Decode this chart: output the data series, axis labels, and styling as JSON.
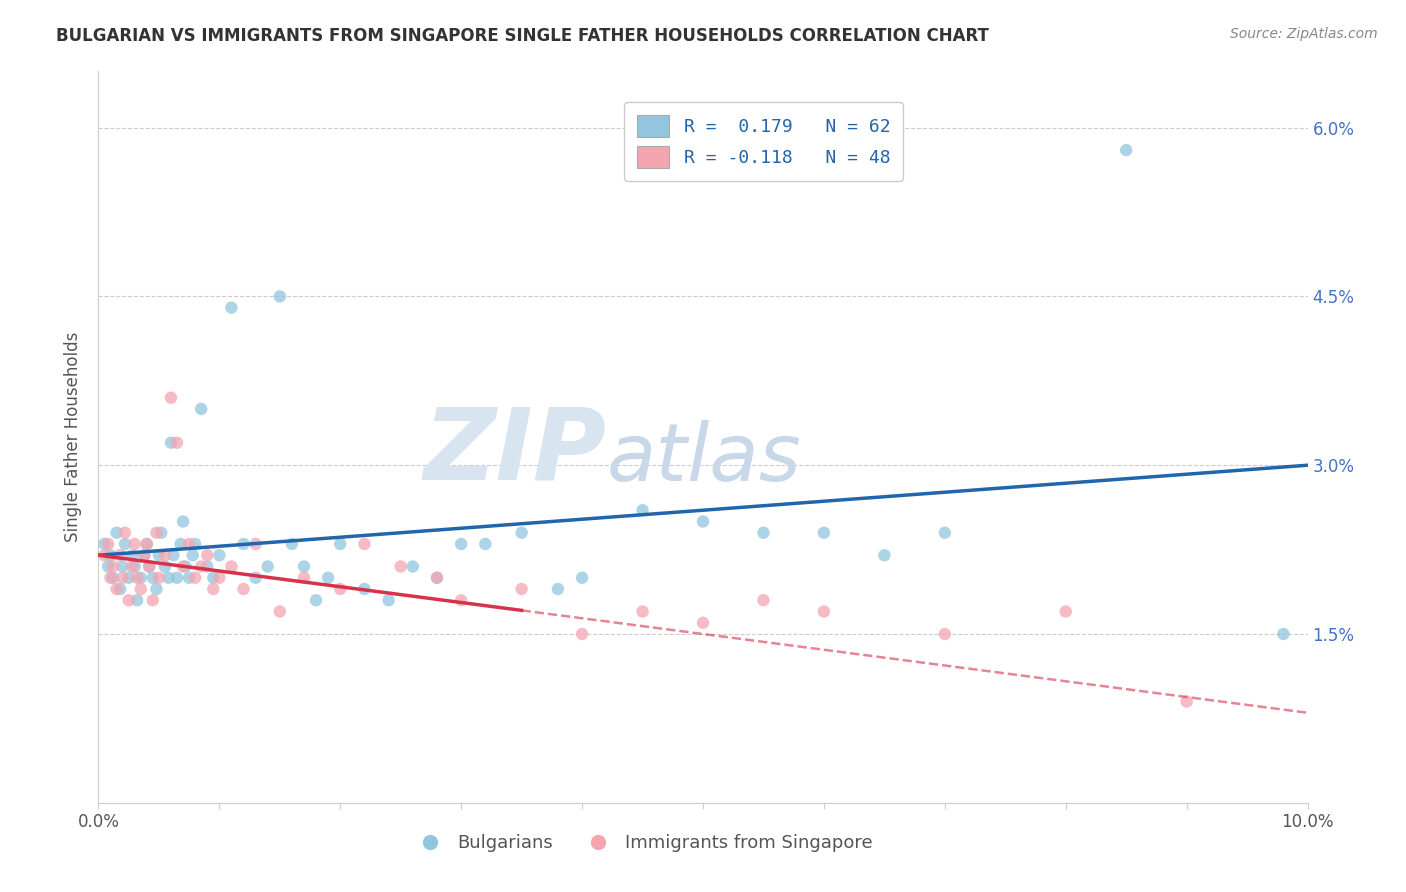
{
  "title": "BULGARIAN VS IMMIGRANTS FROM SINGAPORE SINGLE FATHER HOUSEHOLDS CORRELATION CHART",
  "source_text": "Source: ZipAtlas.com",
  "ylabel": "Single Father Households",
  "xmin": 0.0,
  "xmax": 10.0,
  "ymin": 0.0,
  "ymax": 6.5,
  "yticks": [
    1.5,
    3.0,
    4.5,
    6.0
  ],
  "ytick_labels": [
    "1.5%",
    "3.0%",
    "4.5%",
    "6.0%"
  ],
  "xtick_show": [
    0.0,
    10.0
  ],
  "legend_r1": "R =  0.179   N = 62",
  "legend_r2": "R = -0.118   N = 48",
  "blue_color": "#92c5de",
  "pink_color": "#f4a5b0",
  "blue_line_color": "#2166ac",
  "pink_line_color": "#d6324b",
  "watermark_zip": "ZIP",
  "watermark_atlas": "atlas",
  "blue_scatter_x": [
    0.05,
    0.08,
    0.1,
    0.12,
    0.15,
    0.18,
    0.2,
    0.22,
    0.25,
    0.28,
    0.3,
    0.32,
    0.35,
    0.38,
    0.4,
    0.42,
    0.45,
    0.48,
    0.5,
    0.52,
    0.55,
    0.58,
    0.6,
    0.62,
    0.65,
    0.68,
    0.7,
    0.72,
    0.75,
    0.78,
    0.8,
    0.85,
    0.9,
    0.95,
    1.0,
    1.1,
    1.2,
    1.3,
    1.4,
    1.5,
    1.6,
    1.7,
    1.8,
    1.9,
    2.0,
    2.2,
    2.4,
    2.6,
    2.8,
    3.0,
    3.2,
    3.5,
    3.8,
    4.0,
    4.5,
    5.0,
    5.5,
    6.0,
    6.5,
    7.0,
    8.5,
    9.8
  ],
  "blue_scatter_y": [
    2.3,
    2.1,
    2.2,
    2.0,
    2.4,
    1.9,
    2.1,
    2.3,
    2.0,
    2.2,
    2.1,
    1.8,
    2.0,
    2.2,
    2.3,
    2.1,
    2.0,
    1.9,
    2.2,
    2.4,
    2.1,
    2.0,
    3.2,
    2.2,
    2.0,
    2.3,
    2.5,
    2.1,
    2.0,
    2.2,
    2.3,
    3.5,
    2.1,
    2.0,
    2.2,
    4.4,
    2.3,
    2.0,
    2.1,
    4.5,
    2.3,
    2.1,
    1.8,
    2.0,
    2.3,
    1.9,
    1.8,
    2.1,
    2.0,
    2.3,
    2.3,
    2.4,
    1.9,
    2.0,
    2.6,
    2.5,
    2.4,
    2.4,
    2.2,
    2.4,
    5.8,
    1.5
  ],
  "pink_scatter_x": [
    0.05,
    0.08,
    0.1,
    0.12,
    0.15,
    0.18,
    0.2,
    0.22,
    0.25,
    0.28,
    0.3,
    0.32,
    0.35,
    0.38,
    0.4,
    0.42,
    0.45,
    0.48,
    0.5,
    0.55,
    0.6,
    0.65,
    0.7,
    0.75,
    0.8,
    0.85,
    0.9,
    0.95,
    1.0,
    1.1,
    1.2,
    1.3,
    1.5,
    1.7,
    2.0,
    2.2,
    2.5,
    2.8,
    3.0,
    3.5,
    4.0,
    4.5,
    5.0,
    5.5,
    6.0,
    7.0,
    8.0,
    9.0
  ],
  "pink_scatter_y": [
    2.2,
    2.3,
    2.0,
    2.1,
    1.9,
    2.2,
    2.0,
    2.4,
    1.8,
    2.1,
    2.3,
    2.0,
    1.9,
    2.2,
    2.3,
    2.1,
    1.8,
    2.4,
    2.0,
    2.2,
    3.6,
    3.2,
    2.1,
    2.3,
    2.0,
    2.1,
    2.2,
    1.9,
    2.0,
    2.1,
    1.9,
    2.3,
    1.7,
    2.0,
    1.9,
    2.3,
    2.1,
    2.0,
    1.8,
    1.9,
    1.5,
    1.7,
    1.6,
    1.8,
    1.7,
    1.5,
    1.7,
    0.9
  ],
  "pink_solid_end_x": 3.5,
  "blue_trend_x0": 0.0,
  "blue_trend_x1": 10.0,
  "blue_trend_y0": 2.2,
  "blue_trend_y1": 3.0,
  "pink_trend_x0": 0.0,
  "pink_trend_x1": 10.0,
  "pink_trend_y0": 2.2,
  "pink_trend_y1": 0.8
}
